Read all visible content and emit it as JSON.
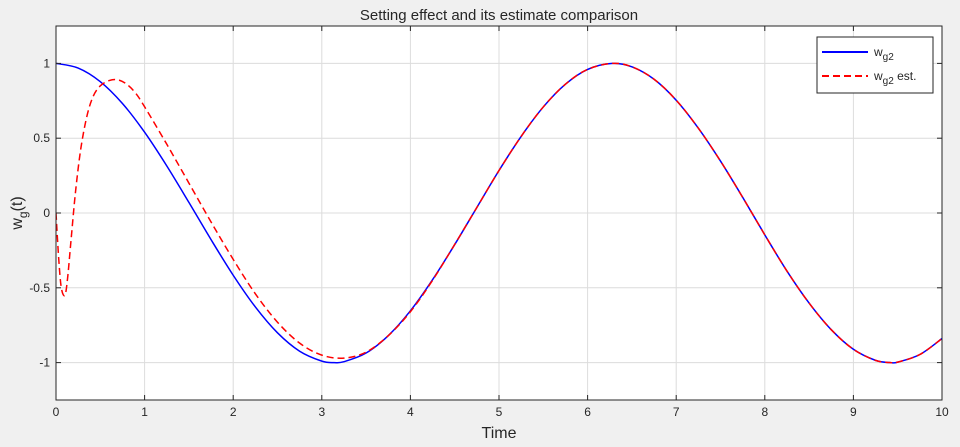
{
  "figure": {
    "background": "#f0f0f0",
    "axes_background": "#ffffff"
  },
  "chart_data": {
    "type": "line",
    "title": "Setting effect and its estimate comparison",
    "xlabel": "Time",
    "ylabel": {
      "base": "w",
      "sub": "g",
      "rest": "(t)"
    },
    "xlim": [
      0,
      10
    ],
    "ylim": [
      -1.25,
      1.25
    ],
    "xticks": [
      0,
      1,
      2,
      3,
      4,
      5,
      6,
      7,
      8,
      9,
      10
    ],
    "xtick_labels": [
      "0",
      "1",
      "2",
      "3",
      "4",
      "5",
      "6",
      "7",
      "8",
      "9",
      "10"
    ],
    "yticks": [
      -1,
      -0.5,
      0,
      0.5,
      1
    ],
    "ytick_labels": [
      "-1",
      "-0.5",
      "0",
      "0.5",
      "1"
    ],
    "grid": true,
    "legend_position": "top-right",
    "series": [
      {
        "name": "w_g2",
        "legend": {
          "base": "w",
          "sub": "g2",
          "rest": ""
        },
        "color": "#0000ff",
        "style": "solid",
        "x": [
          0,
          0.25,
          0.5,
          0.75,
          1,
          1.25,
          1.5,
          1.75,
          2,
          2.25,
          2.5,
          2.75,
          3,
          3.14,
          3.25,
          3.5,
          3.75,
          4,
          4.25,
          4.5,
          4.75,
          5,
          5.25,
          5.5,
          5.75,
          6,
          6.28,
          6.5,
          6.75,
          7,
          7.25,
          7.5,
          7.75,
          8,
          8.25,
          8.5,
          8.75,
          9,
          9.25,
          9.42,
          9.5,
          9.75,
          10
        ],
        "y": [
          1.0,
          0.969,
          0.878,
          0.732,
          0.54,
          0.315,
          0.071,
          -0.178,
          -0.416,
          -0.628,
          -0.801,
          -0.924,
          -0.99,
          -1.0,
          -0.994,
          -0.936,
          -0.82,
          -0.654,
          -0.446,
          -0.211,
          0.037,
          0.284,
          0.512,
          0.709,
          0.861,
          0.96,
          1.0,
          0.977,
          0.894,
          0.754,
          0.567,
          0.347,
          0.105,
          -0.146,
          -0.388,
          -0.602,
          -0.78,
          -0.911,
          -0.985,
          -1.0,
          -0.997,
          -0.946,
          -0.839
        ]
      },
      {
        "name": "w_g2 est.",
        "legend": {
          "base": "w",
          "sub": "g2",
          "rest": " est."
        },
        "color": "#ff0000",
        "style": "dashed",
        "x": [
          0,
          0.03,
          0.06,
          0.1,
          0.13,
          0.17,
          0.22,
          0.28,
          0.35,
          0.42,
          0.5,
          0.6,
          0.7,
          0.8,
          0.9,
          1.0,
          1.25,
          1.5,
          1.75,
          2.0,
          2.25,
          2.5,
          2.75,
          3.0,
          3.25,
          3.5,
          3.75,
          4.0,
          4.25,
          4.5,
          4.75,
          5,
          5.25,
          5.5,
          5.75,
          6,
          6.28,
          6.5,
          6.75,
          7,
          7.25,
          7.5,
          7.75,
          8,
          8.25,
          8.5,
          8.75,
          9,
          9.25,
          9.42,
          9.5,
          9.75,
          10
        ],
        "y": [
          0.0,
          -0.3,
          -0.5,
          -0.55,
          -0.44,
          -0.18,
          0.14,
          0.43,
          0.65,
          0.78,
          0.85,
          0.885,
          0.89,
          0.86,
          0.8,
          0.71,
          0.46,
          0.2,
          -0.06,
          -0.31,
          -0.54,
          -0.73,
          -0.87,
          -0.95,
          -0.97,
          -0.93,
          -0.82,
          -0.66,
          -0.45,
          -0.21,
          0.037,
          0.284,
          0.512,
          0.709,
          0.861,
          0.96,
          1.0,
          0.977,
          0.894,
          0.754,
          0.567,
          0.347,
          0.105,
          -0.146,
          -0.388,
          -0.602,
          -0.78,
          -0.911,
          -0.985,
          -1.0,
          -0.997,
          -0.946,
          -0.839
        ]
      }
    ]
  }
}
